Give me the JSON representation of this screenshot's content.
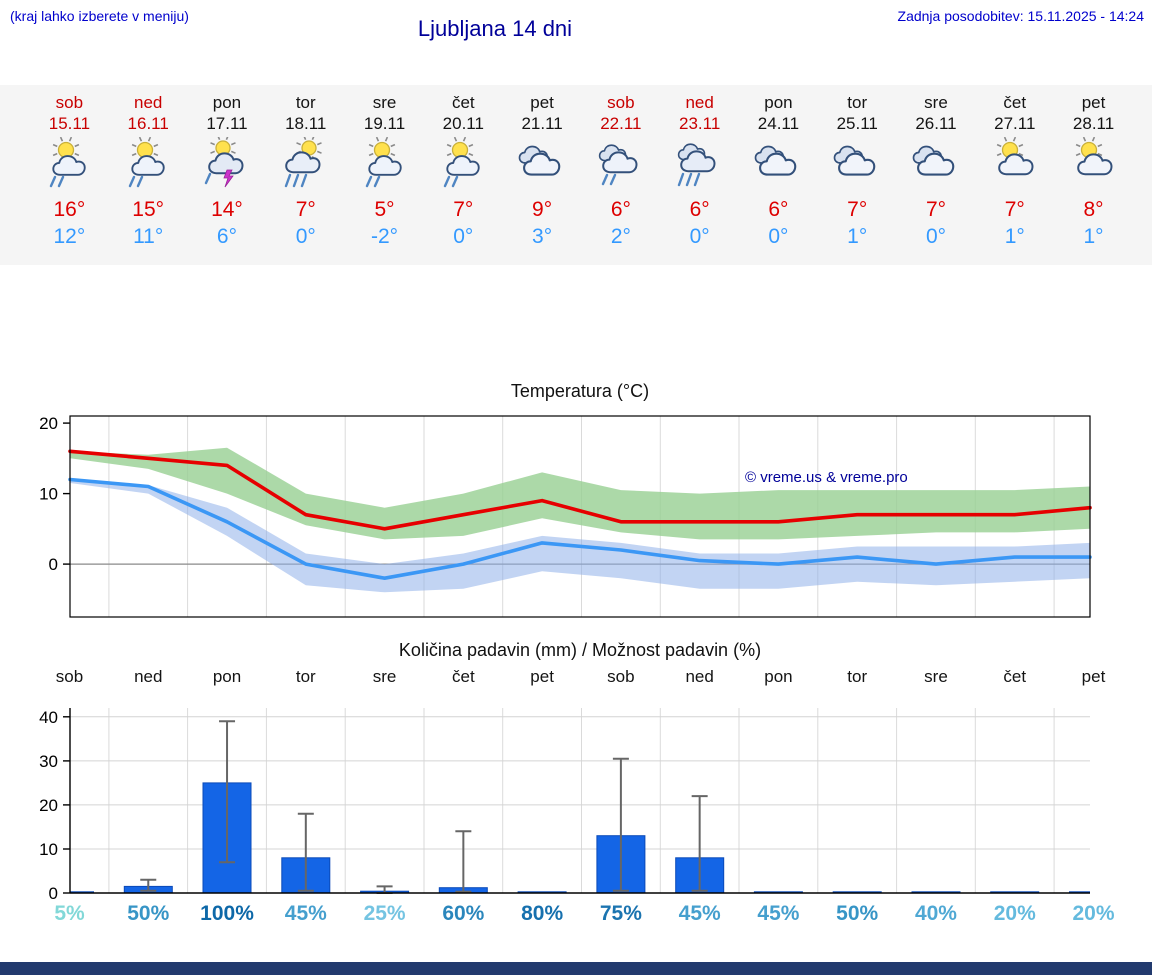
{
  "header": {
    "hint": "(kraj lahko izberete v meniju)",
    "title": "Ljubljana 14 dni",
    "updated": "Zadnja posodobitev: 15.11.2025 - 14:24"
  },
  "colors": {
    "accent_blue": "#0000cc",
    "title_navy": "#000099",
    "weekend_red": "#c80000",
    "max_temp_red": "#dd0000",
    "min_temp_blue": "#3399ff",
    "bar_blue": "#1465e6",
    "strip_bg": "#f5f5f5",
    "bottom_bar": "#223a6e"
  },
  "days": [
    {
      "name": "sob",
      "date": "15.11",
      "weekend": true,
      "icon": "sun-rain",
      "tmax": "16°",
      "tmin": "12°",
      "pop": "5%",
      "pop_color": "#82d8d8"
    },
    {
      "name": "ned",
      "date": "16.11",
      "weekend": true,
      "icon": "sun-rain",
      "tmax": "15°",
      "tmin": "11°",
      "pop": "50%",
      "pop_color": "#3795c6"
    },
    {
      "name": "pon",
      "date": "17.11",
      "weekend": false,
      "icon": "sun-storm",
      "tmax": "14°",
      "tmin": "6°",
      "pop": "100%",
      "pop_color": "#0d68a8"
    },
    {
      "name": "tor",
      "date": "18.11",
      "weekend": false,
      "icon": "sun-heavy-rain",
      "tmax": "7°",
      "tmin": "0°",
      "pop": "45%",
      "pop_color": "#459fce"
    },
    {
      "name": "sre",
      "date": "19.11",
      "weekend": false,
      "icon": "sun-rain",
      "tmax": "5°",
      "tmin": "-2°",
      "pop": "25%",
      "pop_color": "#74c4e2"
    },
    {
      "name": "čet",
      "date": "20.11",
      "weekend": false,
      "icon": "sun-rain",
      "tmax": "7°",
      "tmin": "0°",
      "pop": "60%",
      "pop_color": "#2a86bc"
    },
    {
      "name": "pet",
      "date": "21.11",
      "weekend": false,
      "icon": "cloudy",
      "tmax": "9°",
      "tmin": "3°",
      "pop": "80%",
      "pop_color": "#1670ae"
    },
    {
      "name": "sob",
      "date": "22.11",
      "weekend": true,
      "icon": "cloud-rain",
      "tmax": "6°",
      "tmin": "2°",
      "pop": "75%",
      "pop_color": "#1b74b0"
    },
    {
      "name": "ned",
      "date": "23.11",
      "weekend": true,
      "icon": "cloud-heavy-rain",
      "tmax": "6°",
      "tmin": "0°",
      "pop": "45%",
      "pop_color": "#459fce"
    },
    {
      "name": "pon",
      "date": "24.11",
      "weekend": false,
      "icon": "cloudy",
      "tmax": "6°",
      "tmin": "0°",
      "pop": "45%",
      "pop_color": "#459fce"
    },
    {
      "name": "tor",
      "date": "25.11",
      "weekend": false,
      "icon": "cloudy",
      "tmax": "7°",
      "tmin": "1°",
      "pop": "50%",
      "pop_color": "#3795c6"
    },
    {
      "name": "sre",
      "date": "26.11",
      "weekend": false,
      "icon": "cloudy",
      "tmax": "7°",
      "tmin": "0°",
      "pop": "40%",
      "pop_color": "#4fa8d4"
    },
    {
      "name": "čet",
      "date": "27.11",
      "weekend": false,
      "icon": "sun-cloud",
      "tmax": "7°",
      "tmin": "1°",
      "pop": "20%",
      "pop_color": "#64bade"
    },
    {
      "name": "pet",
      "date": "28.11",
      "weekend": false,
      "icon": "sun-cloud",
      "tmax": "8°",
      "tmin": "1°",
      "pop": "20%",
      "pop_color": "#64bade"
    }
  ],
  "chart_data": [
    {
      "type": "line",
      "title": "Temperatura (°C)",
      "categories": [
        "sob",
        "ned",
        "pon",
        "tor",
        "sre",
        "čet",
        "pet",
        "sob",
        "ned",
        "pon",
        "tor",
        "sre",
        "čet",
        "pet"
      ],
      "x_dates": [
        "15.11",
        "16.11",
        "17.11",
        "18.11",
        "19.11",
        "20.11",
        "21.11",
        "22.11",
        "23.11",
        "24.11",
        "25.11",
        "26.11",
        "27.11",
        "28.11"
      ],
      "ylim": [
        -7.5,
        21
      ],
      "yticks": [
        0,
        10,
        20
      ],
      "grid": "vertical-day-boundaries",
      "legend": "none",
      "watermark": "© vreme.us & vreme.pro",
      "series": [
        {
          "name": "max temperature",
          "color": "#e60000",
          "values": [
            16,
            15,
            14,
            7,
            5,
            7,
            9,
            6,
            6,
            6,
            7,
            7,
            7,
            8
          ],
          "band_upper": [
            16,
            15.5,
            16.5,
            10,
            8,
            10,
            13,
            10.5,
            10,
            10.5,
            10.5,
            10.5,
            10.5,
            11
          ],
          "band_lower": [
            15,
            13.5,
            10,
            5.5,
            3.5,
            4,
            6.5,
            4.5,
            3.5,
            3.5,
            4,
            4.5,
            4.5,
            5
          ],
          "band_color": "#97cf92",
          "band_opacity": 0.8
        },
        {
          "name": "min temperature",
          "color": "#3b97f5",
          "values": [
            12,
            11,
            6,
            0,
            -2,
            0,
            3,
            2,
            0.5,
            0,
            1,
            0,
            1,
            1
          ],
          "band_upper": [
            12.2,
            11.2,
            8,
            1.5,
            0,
            1.5,
            4,
            3,
            1.5,
            1.5,
            2.5,
            2.5,
            2.5,
            3
          ],
          "band_lower": [
            11.5,
            10,
            4,
            -3,
            -4,
            -3.5,
            -1,
            -2,
            -3.5,
            -3.5,
            -2.5,
            -3,
            -2.5,
            -2
          ],
          "band_color": "#8fb0ea",
          "band_opacity": 0.55
        }
      ]
    },
    {
      "type": "bar",
      "title": "Količina padavin (mm) / Možnost padavin (%)",
      "categories": [
        "sob",
        "ned",
        "pon",
        "tor",
        "sre",
        "čet",
        "pet",
        "sob",
        "ned",
        "pon",
        "tor",
        "sre",
        "čet",
        "pet"
      ],
      "ylim": [
        0,
        42
      ],
      "yticks": [
        0,
        10,
        20,
        30,
        40
      ],
      "bar_color": "#1465e6",
      "values": [
        0.2,
        1.5,
        25,
        8,
        0.4,
        1.2,
        0.1,
        13,
        8,
        0.1,
        0.1,
        0.2,
        0.1,
        0.1
      ],
      "whisker_low": [
        0,
        0.5,
        7,
        0.5,
        0,
        0.3,
        0,
        0.5,
        0.5,
        0,
        0,
        0,
        0,
        0
      ],
      "whisker_high": [
        0,
        3,
        39,
        18,
        1.5,
        14,
        0,
        30.5,
        22,
        0,
        0,
        0,
        0,
        0
      ],
      "probabilities": [
        "5%",
        "50%",
        "100%",
        "45%",
        "25%",
        "60%",
        "80%",
        "75%",
        "45%",
        "45%",
        "50%",
        "40%",
        "20%",
        "20%"
      ]
    }
  ]
}
